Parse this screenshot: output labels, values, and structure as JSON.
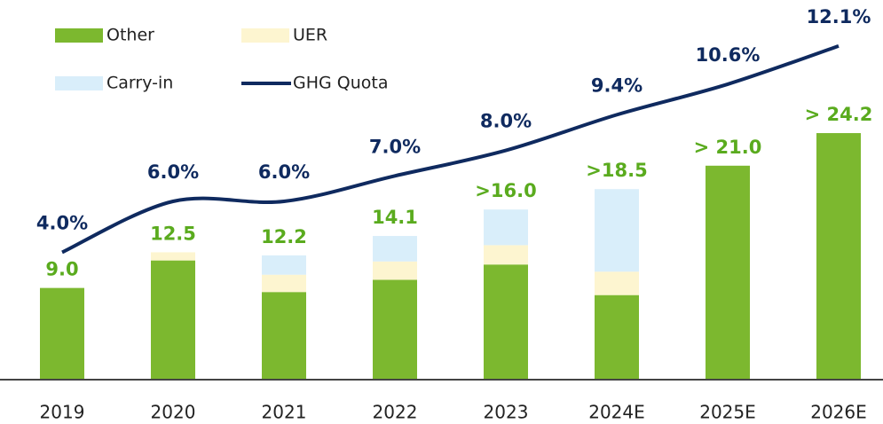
{
  "chart_data": {
    "type": "bar",
    "categories": [
      "2019",
      "2020",
      "2021",
      "2022",
      "2023",
      "2024E",
      "2025E",
      "2026E"
    ],
    "series": [
      {
        "name": "Other",
        "color": "#7cb82f",
        "values": [
          9.0,
          11.7,
          8.6,
          9.8,
          11.3,
          8.3,
          21.0,
          24.2
        ]
      },
      {
        "name": "UER",
        "color": "#fdf5d0",
        "values": [
          0,
          0.8,
          1.7,
          1.8,
          1.9,
          2.3,
          0,
          0
        ]
      },
      {
        "name": "Carry-in",
        "color": "#d9eefa",
        "values": [
          0,
          0,
          1.9,
          2.5,
          3.5,
          8.1,
          0,
          0
        ]
      },
      {
        "name": "GHG Quota",
        "type": "line",
        "axis": "y2",
        "color": "#0f2a5f",
        "values": [
          4.0,
          6.0,
          6.0,
          7.0,
          8.0,
          9.4,
          10.6,
          12.1
        ],
        "value_labels": [
          "4.0%",
          "6.0%",
          "6.0%",
          "7.0%",
          "8.0%",
          "9.4%",
          "10.6%",
          "12.1%"
        ]
      }
    ],
    "totals": [
      9.0,
      12.5,
      12.2,
      14.1,
      16.0,
      18.5,
      21.0,
      24.2
    ],
    "total_labels": [
      "9.0",
      "12.5",
      "12.2",
      "14.1",
      ">16.0",
      ">18.5",
      "> 21.0",
      "> 24.2"
    ],
    "total_label_color": "#5aab1e",
    "ylim": [
      0,
      35
    ],
    "y2lim": [
      -1,
      13
    ],
    "legend": "upper left",
    "grid": false
  }
}
